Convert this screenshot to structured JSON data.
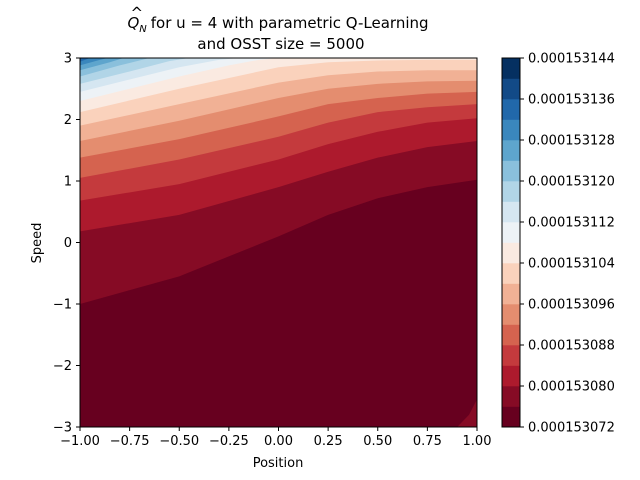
{
  "chart_data": {
    "type": "contour",
    "title_line1_prefix": "for u = 4 with parametric Q-Learning",
    "title_symbol": "Q",
    "title_symbol_subscript": "N",
    "title_line2": "and OSST size = 5000",
    "xlabel": "Position",
    "ylabel": "Speed",
    "xlim": [
      -1.0,
      1.0
    ],
    "ylim": [
      -3,
      3
    ],
    "x_ticks": [
      -1.0,
      -0.75,
      -0.5,
      -0.25,
      0.0,
      0.25,
      0.5,
      0.75,
      1.0
    ],
    "x_tick_labels": [
      "−1.00",
      "−0.75",
      "−0.50",
      "−0.25",
      "0.00",
      "0.25",
      "0.50",
      "0.75",
      "1.00"
    ],
    "y_ticks": [
      -3,
      -2,
      -1,
      0,
      1,
      2,
      3
    ],
    "y_tick_labels": [
      "−3",
      "−2",
      "−1",
      "0",
      "1",
      "2",
      "3"
    ],
    "colorbar": {
      "vmin": 0.000153072,
      "vmax": 0.000153144,
      "levels": 18,
      "tick_labels": [
        "0.000153072",
        "0.000153080",
        "0.000153088",
        "0.000153096",
        "0.000153104",
        "0.000153112",
        "0.000153120",
        "0.000153128",
        "0.000153136",
        "0.000153144"
      ],
      "colors": [
        "#67001f",
        "#860b25",
        "#ad1a2d",
        "#c43a3d",
        "#d5634f",
        "#e48d6f",
        "#f1b195",
        "#fad2bc",
        "#faeae1",
        "#edf2f6",
        "#d5e6f1",
        "#b1d5e7",
        "#8ac0dc",
        "#5ea5cd",
        "#3a87bd",
        "#2168aa",
        "#124a87",
        "#053061"
      ]
    },
    "contour_boundaries": [
      {
        "level_index": 1,
        "points": [
          [
            -1.0,
            -1.0
          ],
          [
            -0.5,
            -0.55
          ],
          [
            0.0,
            0.1
          ],
          [
            0.25,
            0.45
          ],
          [
            0.5,
            0.72
          ],
          [
            0.75,
            0.9
          ],
          [
            1.0,
            1.02
          ]
        ]
      },
      {
        "level_index": 2,
        "points": [
          [
            -1.0,
            0.18
          ],
          [
            -0.5,
            0.45
          ],
          [
            0.0,
            0.9
          ],
          [
            0.25,
            1.15
          ],
          [
            0.5,
            1.38
          ],
          [
            0.75,
            1.55
          ],
          [
            1.0,
            1.65
          ]
        ]
      },
      {
        "level_index": 3,
        "points": [
          [
            -1.0,
            0.68
          ],
          [
            -0.5,
            0.95
          ],
          [
            0.0,
            1.35
          ],
          [
            0.25,
            1.6
          ],
          [
            0.5,
            1.8
          ],
          [
            0.75,
            1.95
          ],
          [
            1.0,
            2.02
          ]
        ]
      },
      {
        "level_index": 4,
        "points": [
          [
            -1.0,
            1.05
          ],
          [
            -0.5,
            1.35
          ],
          [
            0.0,
            1.72
          ],
          [
            0.25,
            1.95
          ],
          [
            0.5,
            2.12
          ],
          [
            0.75,
            2.2
          ],
          [
            1.0,
            2.25
          ]
        ]
      },
      {
        "level_index": 5,
        "points": [
          [
            -1.0,
            1.38
          ],
          [
            -0.5,
            1.68
          ],
          [
            0.0,
            2.05
          ],
          [
            0.25,
            2.25
          ],
          [
            0.5,
            2.35
          ],
          [
            0.75,
            2.42
          ],
          [
            1.0,
            2.45
          ]
        ]
      },
      {
        "level_index": 6,
        "points": [
          [
            -1.0,
            1.65
          ],
          [
            -0.5,
            1.98
          ],
          [
            0.0,
            2.35
          ],
          [
            0.25,
            2.5
          ],
          [
            0.5,
            2.58
          ],
          [
            0.75,
            2.62
          ],
          [
            1.0,
            2.63
          ]
        ]
      },
      {
        "level_index": 7,
        "points": [
          [
            -1.0,
            1.9
          ],
          [
            -0.5,
            2.25
          ],
          [
            0.0,
            2.6
          ],
          [
            0.25,
            2.72
          ],
          [
            0.5,
            2.78
          ],
          [
            0.75,
            2.8
          ],
          [
            1.0,
            2.8
          ]
        ]
      },
      {
        "level_index": 8,
        "points": [
          [
            -1.0,
            2.12
          ],
          [
            -0.5,
            2.5
          ],
          [
            0.0,
            2.85
          ],
          [
            0.25,
            2.93
          ],
          [
            0.5,
            2.96
          ],
          [
            0.75,
            2.97
          ],
          [
            1.0,
            2.97
          ]
        ]
      },
      {
        "level_index": 9,
        "points": [
          [
            -1.0,
            2.3
          ],
          [
            -0.75,
            2.5
          ],
          [
            -0.5,
            2.7
          ],
          [
            -0.25,
            2.88
          ],
          [
            -0.1,
            2.97
          ],
          [
            0.0,
            3.0
          ]
        ]
      },
      {
        "level_index": 10,
        "points": [
          [
            -1.0,
            2.45
          ],
          [
            -0.75,
            2.65
          ],
          [
            -0.5,
            2.85
          ],
          [
            -0.3,
            2.97
          ],
          [
            -0.2,
            3.0
          ]
        ]
      },
      {
        "level_index": 11,
        "points": [
          [
            -1.0,
            2.58
          ],
          [
            -0.75,
            2.78
          ],
          [
            -0.55,
            2.95
          ],
          [
            -0.45,
            3.0
          ]
        ]
      },
      {
        "level_index": 12,
        "points": [
          [
            -1.0,
            2.7
          ],
          [
            -0.8,
            2.88
          ],
          [
            -0.65,
            3.0
          ]
        ]
      },
      {
        "level_index": 13,
        "points": [
          [
            -1.0,
            2.8
          ],
          [
            -0.85,
            2.93
          ],
          [
            -0.78,
            3.0
          ]
        ]
      },
      {
        "level_index": 14,
        "points": [
          [
            -1.0,
            2.88
          ],
          [
            -0.9,
            2.97
          ],
          [
            -0.86,
            3.0
          ]
        ]
      },
      {
        "level_index": 15,
        "points": [
          [
            -1.0,
            2.94
          ],
          [
            -0.95,
            3.0
          ]
        ]
      }
    ],
    "corner_patch": {
      "level_index": 1,
      "points": [
        [
          0.9,
          -3.0
        ],
        [
          0.96,
          -2.8
        ],
        [
          1.0,
          -2.55
        ],
        [
          1.0,
          -3.0
        ]
      ]
    }
  }
}
